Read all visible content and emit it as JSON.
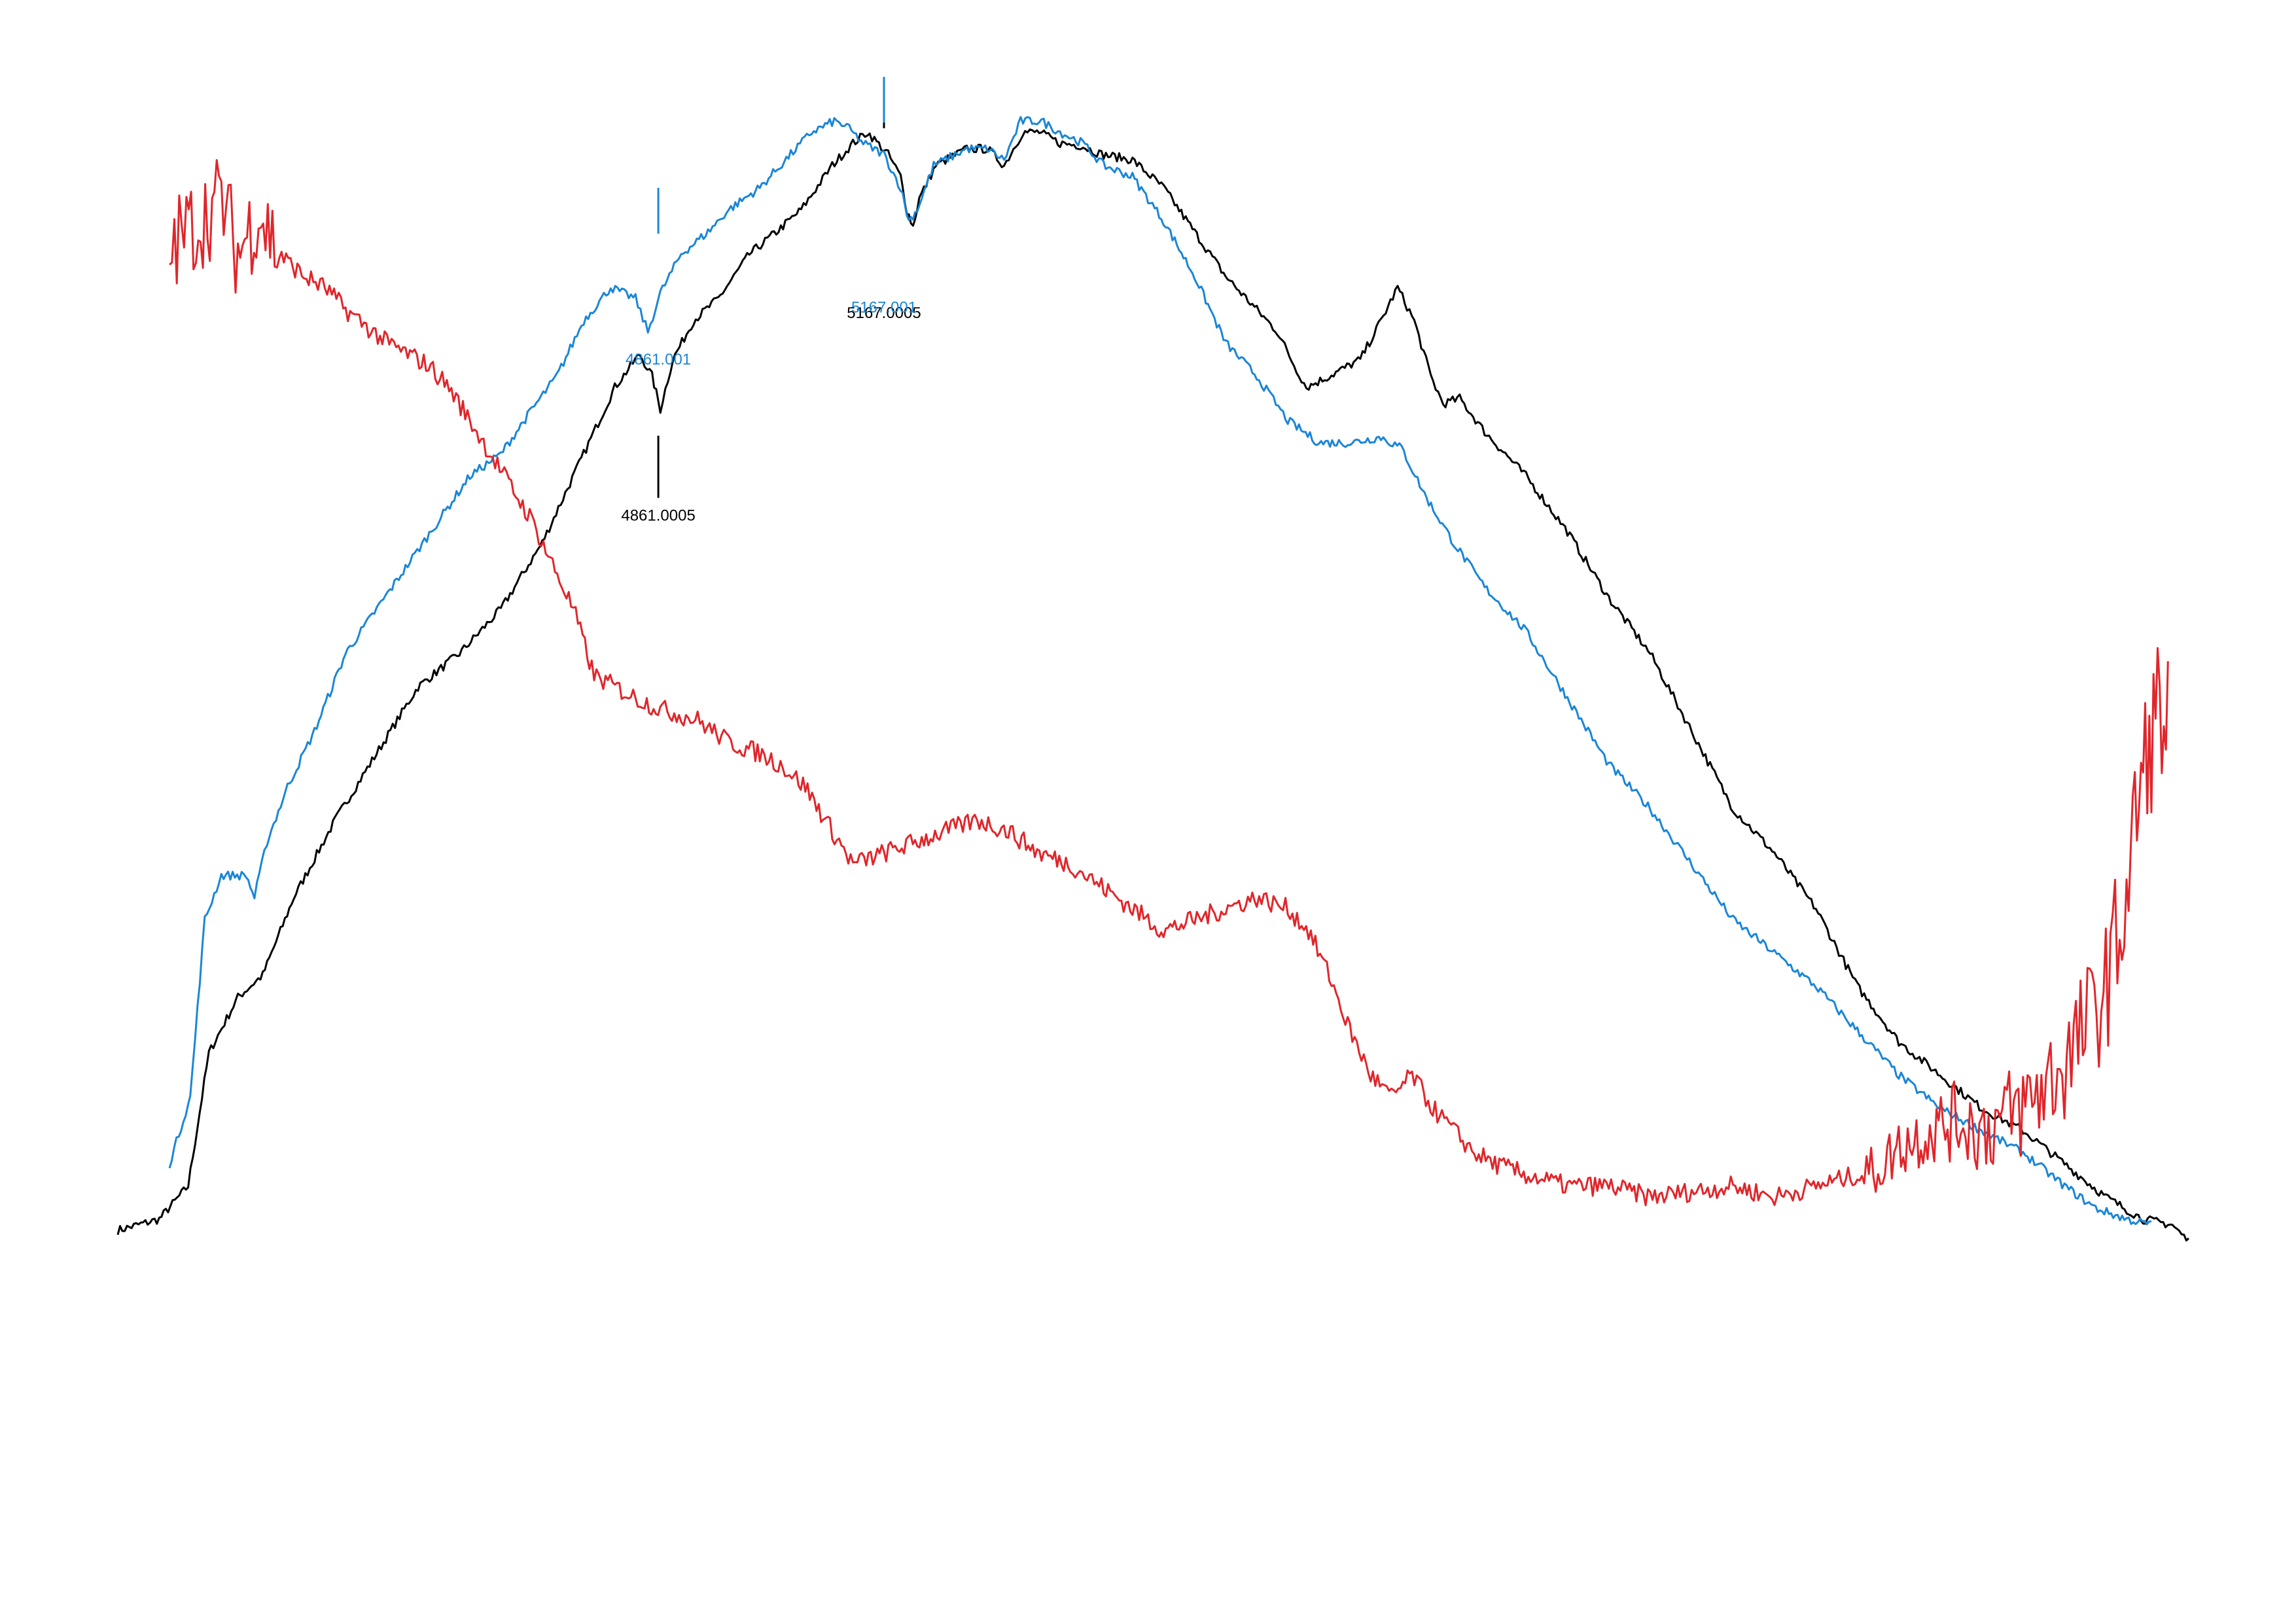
{
  "chart_data": {
    "type": "line",
    "title": "",
    "xlabel": "",
    "ylabel": "",
    "grid": false,
    "legend": "none",
    "series": [
      {
        "color": "#000000",
        "points": [
          [
            0.0,
            0.0
          ],
          [
            0.02,
            0.01
          ],
          [
            0.034,
            0.04
          ],
          [
            0.044,
            0.16
          ],
          [
            0.058,
            0.21
          ],
          [
            0.07,
            0.23
          ],
          [
            0.085,
            0.3
          ],
          [
            0.105,
            0.37
          ],
          [
            0.125,
            0.43
          ],
          [
            0.145,
            0.49
          ],
          [
            0.165,
            0.52
          ],
          [
            0.185,
            0.56
          ],
          [
            0.205,
            0.62
          ],
          [
            0.225,
            0.7
          ],
          [
            0.24,
            0.76
          ],
          [
            0.252,
            0.79
          ],
          [
            0.258,
            0.77
          ],
          [
            0.262,
            0.74
          ],
          [
            0.268,
            0.785
          ],
          [
            0.278,
            0.82
          ],
          [
            0.29,
            0.84
          ],
          [
            0.305,
            0.88
          ],
          [
            0.318,
            0.9
          ],
          [
            0.33,
            0.92
          ],
          [
            0.345,
            0.96
          ],
          [
            0.355,
            0.98
          ],
          [
            0.362,
            0.99
          ],
          [
            0.372,
            0.97
          ],
          [
            0.378,
            0.95
          ],
          [
            0.381,
            0.92
          ],
          [
            0.384,
            0.905
          ],
          [
            0.387,
            0.93
          ],
          [
            0.395,
            0.96
          ],
          [
            0.41,
            0.975
          ],
          [
            0.42,
            0.975
          ],
          [
            0.428,
            0.96
          ],
          [
            0.437,
            0.99
          ],
          [
            0.445,
            0.99
          ],
          [
            0.455,
            0.98
          ],
          [
            0.465,
            0.978
          ],
          [
            0.475,
            0.97
          ],
          [
            0.49,
            0.965
          ],
          [
            0.505,
            0.94
          ],
          [
            0.52,
            0.9
          ],
          [
            0.535,
            0.86
          ],
          [
            0.55,
            0.83
          ],
          [
            0.56,
            0.81
          ],
          [
            0.568,
            0.78
          ],
          [
            0.574,
            0.76
          ],
          [
            0.585,
            0.77
          ],
          [
            0.6,
            0.785
          ],
          [
            0.61,
            0.82
          ],
          [
            0.618,
            0.85
          ],
          [
            0.626,
            0.82
          ],
          [
            0.634,
            0.77
          ],
          [
            0.64,
            0.745
          ],
          [
            0.648,
            0.75
          ],
          [
            0.66,
            0.72
          ],
          [
            0.68,
            0.68
          ],
          [
            0.7,
            0.63
          ],
          [
            0.72,
            0.57
          ],
          [
            0.74,
            0.52
          ],
          [
            0.76,
            0.45
          ],
          [
            0.78,
            0.38
          ],
          [
            0.8,
            0.34
          ],
          [
            0.82,
            0.29
          ],
          [
            0.84,
            0.22
          ],
          [
            0.86,
            0.17
          ],
          [
            0.88,
            0.14
          ],
          [
            0.9,
            0.11
          ],
          [
            0.92,
            0.09
          ],
          [
            0.94,
            0.06
          ],
          [
            0.96,
            0.03
          ],
          [
            0.978,
            0.01
          ],
          [
            0.992,
            0.005
          ],
          [
            1.0,
            -0.01
          ]
        ]
      },
      {
        "color": "#1a86d6",
        "points": [
          [
            0.025,
            0.06
          ],
          [
            0.035,
            0.12
          ],
          [
            0.042,
            0.28
          ],
          [
            0.05,
            0.32
          ],
          [
            0.062,
            0.32
          ],
          [
            0.066,
            0.3
          ],
          [
            0.072,
            0.35
          ],
          [
            0.082,
            0.4
          ],
          [
            0.095,
            0.45
          ],
          [
            0.11,
            0.52
          ],
          [
            0.125,
            0.56
          ],
          [
            0.14,
            0.6
          ],
          [
            0.155,
            0.64
          ],
          [
            0.17,
            0.68
          ],
          [
            0.185,
            0.7
          ],
          [
            0.2,
            0.74
          ],
          [
            0.212,
            0.77
          ],
          [
            0.225,
            0.82
          ],
          [
            0.238,
            0.85
          ],
          [
            0.25,
            0.84
          ],
          [
            0.256,
            0.81
          ],
          [
            0.262,
            0.845
          ],
          [
            0.272,
            0.88
          ],
          [
            0.285,
            0.9
          ],
          [
            0.295,
            0.92
          ],
          [
            0.31,
            0.94
          ],
          [
            0.325,
            0.97
          ],
          [
            0.335,
            0.99
          ],
          [
            0.346,
            1.0
          ],
          [
            0.352,
            0.995
          ],
          [
            0.36,
            0.98
          ],
          [
            0.37,
            0.97
          ],
          [
            0.378,
            0.94
          ],
          [
            0.382,
            0.91
          ],
          [
            0.386,
            0.92
          ],
          [
            0.394,
            0.96
          ],
          [
            0.41,
            0.975
          ],
          [
            0.42,
            0.975
          ],
          [
            0.428,
            0.965
          ],
          [
            0.436,
            1.0
          ],
          [
            0.446,
            1.0
          ],
          [
            0.455,
            0.99
          ],
          [
            0.466,
            0.98
          ],
          [
            0.476,
            0.96
          ],
          [
            0.49,
            0.95
          ],
          [
            0.505,
            0.91
          ],
          [
            0.52,
            0.86
          ],
          [
            0.535,
            0.8
          ],
          [
            0.55,
            0.77
          ],
          [
            0.565,
            0.73
          ],
          [
            0.58,
            0.71
          ],
          [
            0.595,
            0.71
          ],
          [
            0.61,
            0.715
          ],
          [
            0.62,
            0.705
          ],
          [
            0.632,
            0.66
          ],
          [
            0.645,
            0.62
          ],
          [
            0.66,
            0.58
          ],
          [
            0.68,
            0.54
          ],
          [
            0.7,
            0.48
          ],
          [
            0.72,
            0.42
          ],
          [
            0.74,
            0.38
          ],
          [
            0.76,
            0.33
          ],
          [
            0.78,
            0.28
          ],
          [
            0.8,
            0.25
          ],
          [
            0.82,
            0.22
          ],
          [
            0.84,
            0.18
          ],
          [
            0.86,
            0.14
          ],
          [
            0.88,
            0.11
          ],
          [
            0.9,
            0.09
          ],
          [
            0.92,
            0.07
          ],
          [
            0.94,
            0.04
          ],
          [
            0.955,
            0.02
          ],
          [
            0.97,
            0.01
          ],
          [
            0.982,
            0.005
          ]
        ]
      },
      {
        "color": "#e0262b",
        "noise": true,
        "points": [
          [
            0.025,
            0.88
          ],
          [
            0.032,
            0.9
          ],
          [
            0.04,
            0.91
          ],
          [
            0.05,
            0.93
          ],
          [
            0.058,
            0.88
          ],
          [
            0.068,
            0.92
          ],
          [
            0.078,
            0.88
          ],
          [
            0.09,
            0.86
          ],
          [
            0.1,
            0.85
          ],
          [
            0.11,
            0.83
          ],
          [
            0.12,
            0.815
          ],
          [
            0.13,
            0.8
          ],
          [
            0.14,
            0.79
          ],
          [
            0.15,
            0.78
          ],
          [
            0.16,
            0.76
          ],
          [
            0.17,
            0.73
          ],
          [
            0.18,
            0.7
          ],
          [
            0.19,
            0.67
          ],
          [
            0.2,
            0.64
          ],
          [
            0.21,
            0.6
          ],
          [
            0.22,
            0.56
          ],
          [
            0.23,
            0.5
          ],
          [
            0.24,
            0.49
          ],
          [
            0.25,
            0.48
          ],
          [
            0.262,
            0.47
          ],
          [
            0.28,
            0.46
          ],
          [
            0.295,
            0.44
          ],
          [
            0.31,
            0.43
          ],
          [
            0.32,
            0.42
          ],
          [
            0.332,
            0.4
          ],
          [
            0.345,
            0.36
          ],
          [
            0.355,
            0.33
          ],
          [
            0.37,
            0.34
          ],
          [
            0.385,
            0.35
          ],
          [
            0.4,
            0.36
          ],
          [
            0.415,
            0.37
          ],
          [
            0.43,
            0.36
          ],
          [
            0.445,
            0.34
          ],
          [
            0.46,
            0.33
          ],
          [
            0.475,
            0.31
          ],
          [
            0.49,
            0.29
          ],
          [
            0.505,
            0.27
          ],
          [
            0.52,
            0.28
          ],
          [
            0.535,
            0.29
          ],
          [
            0.55,
            0.3
          ],
          [
            0.565,
            0.29
          ],
          [
            0.575,
            0.27
          ],
          [
            0.585,
            0.23
          ],
          [
            0.595,
            0.18
          ],
          [
            0.605,
            0.14
          ],
          [
            0.615,
            0.12
          ],
          [
            0.625,
            0.14
          ],
          [
            0.635,
            0.11
          ],
          [
            0.645,
            0.09
          ],
          [
            0.655,
            0.07
          ],
          [
            0.665,
            0.06
          ],
          [
            0.68,
            0.05
          ],
          [
            0.7,
            0.04
          ],
          [
            0.72,
            0.04
          ],
          [
            0.74,
            0.03
          ],
          [
            0.76,
            0.035
          ],
          [
            0.78,
            0.04
          ],
          [
            0.8,
            0.03
          ],
          [
            0.82,
            0.04
          ],
          [
            0.84,
            0.05
          ],
          [
            0.85,
            0.055
          ],
          [
            0.86,
            0.075
          ],
          [
            0.875,
            0.09
          ],
          [
            0.89,
            0.1
          ],
          [
            0.9,
            0.09
          ],
          [
            0.91,
            0.1
          ],
          [
            0.92,
            0.11
          ],
          [
            0.93,
            0.13
          ],
          [
            0.94,
            0.15
          ],
          [
            0.95,
            0.18
          ],
          [
            0.96,
            0.22
          ],
          [
            0.97,
            0.3
          ],
          [
            0.975,
            0.38
          ],
          [
            0.98,
            0.43
          ],
          [
            0.985,
            0.47
          ],
          [
            0.99,
            0.45
          ]
        ]
      }
    ],
    "annotations": [
      {
        "label": "4861.0005",
        "color": "#000000",
        "x": 0.261,
        "y": 0.74
      },
      {
        "label": "4861.001",
        "color": "#1a86d6",
        "x": 0.261,
        "y": 0.81
      },
      {
        "label": "5167.0005",
        "color": "#000000",
        "x": 0.37,
        "y": 0.905
      },
      {
        "label": "5167.001",
        "color": "#1a86d6",
        "x": 0.37,
        "y": 0.91
      }
    ]
  }
}
